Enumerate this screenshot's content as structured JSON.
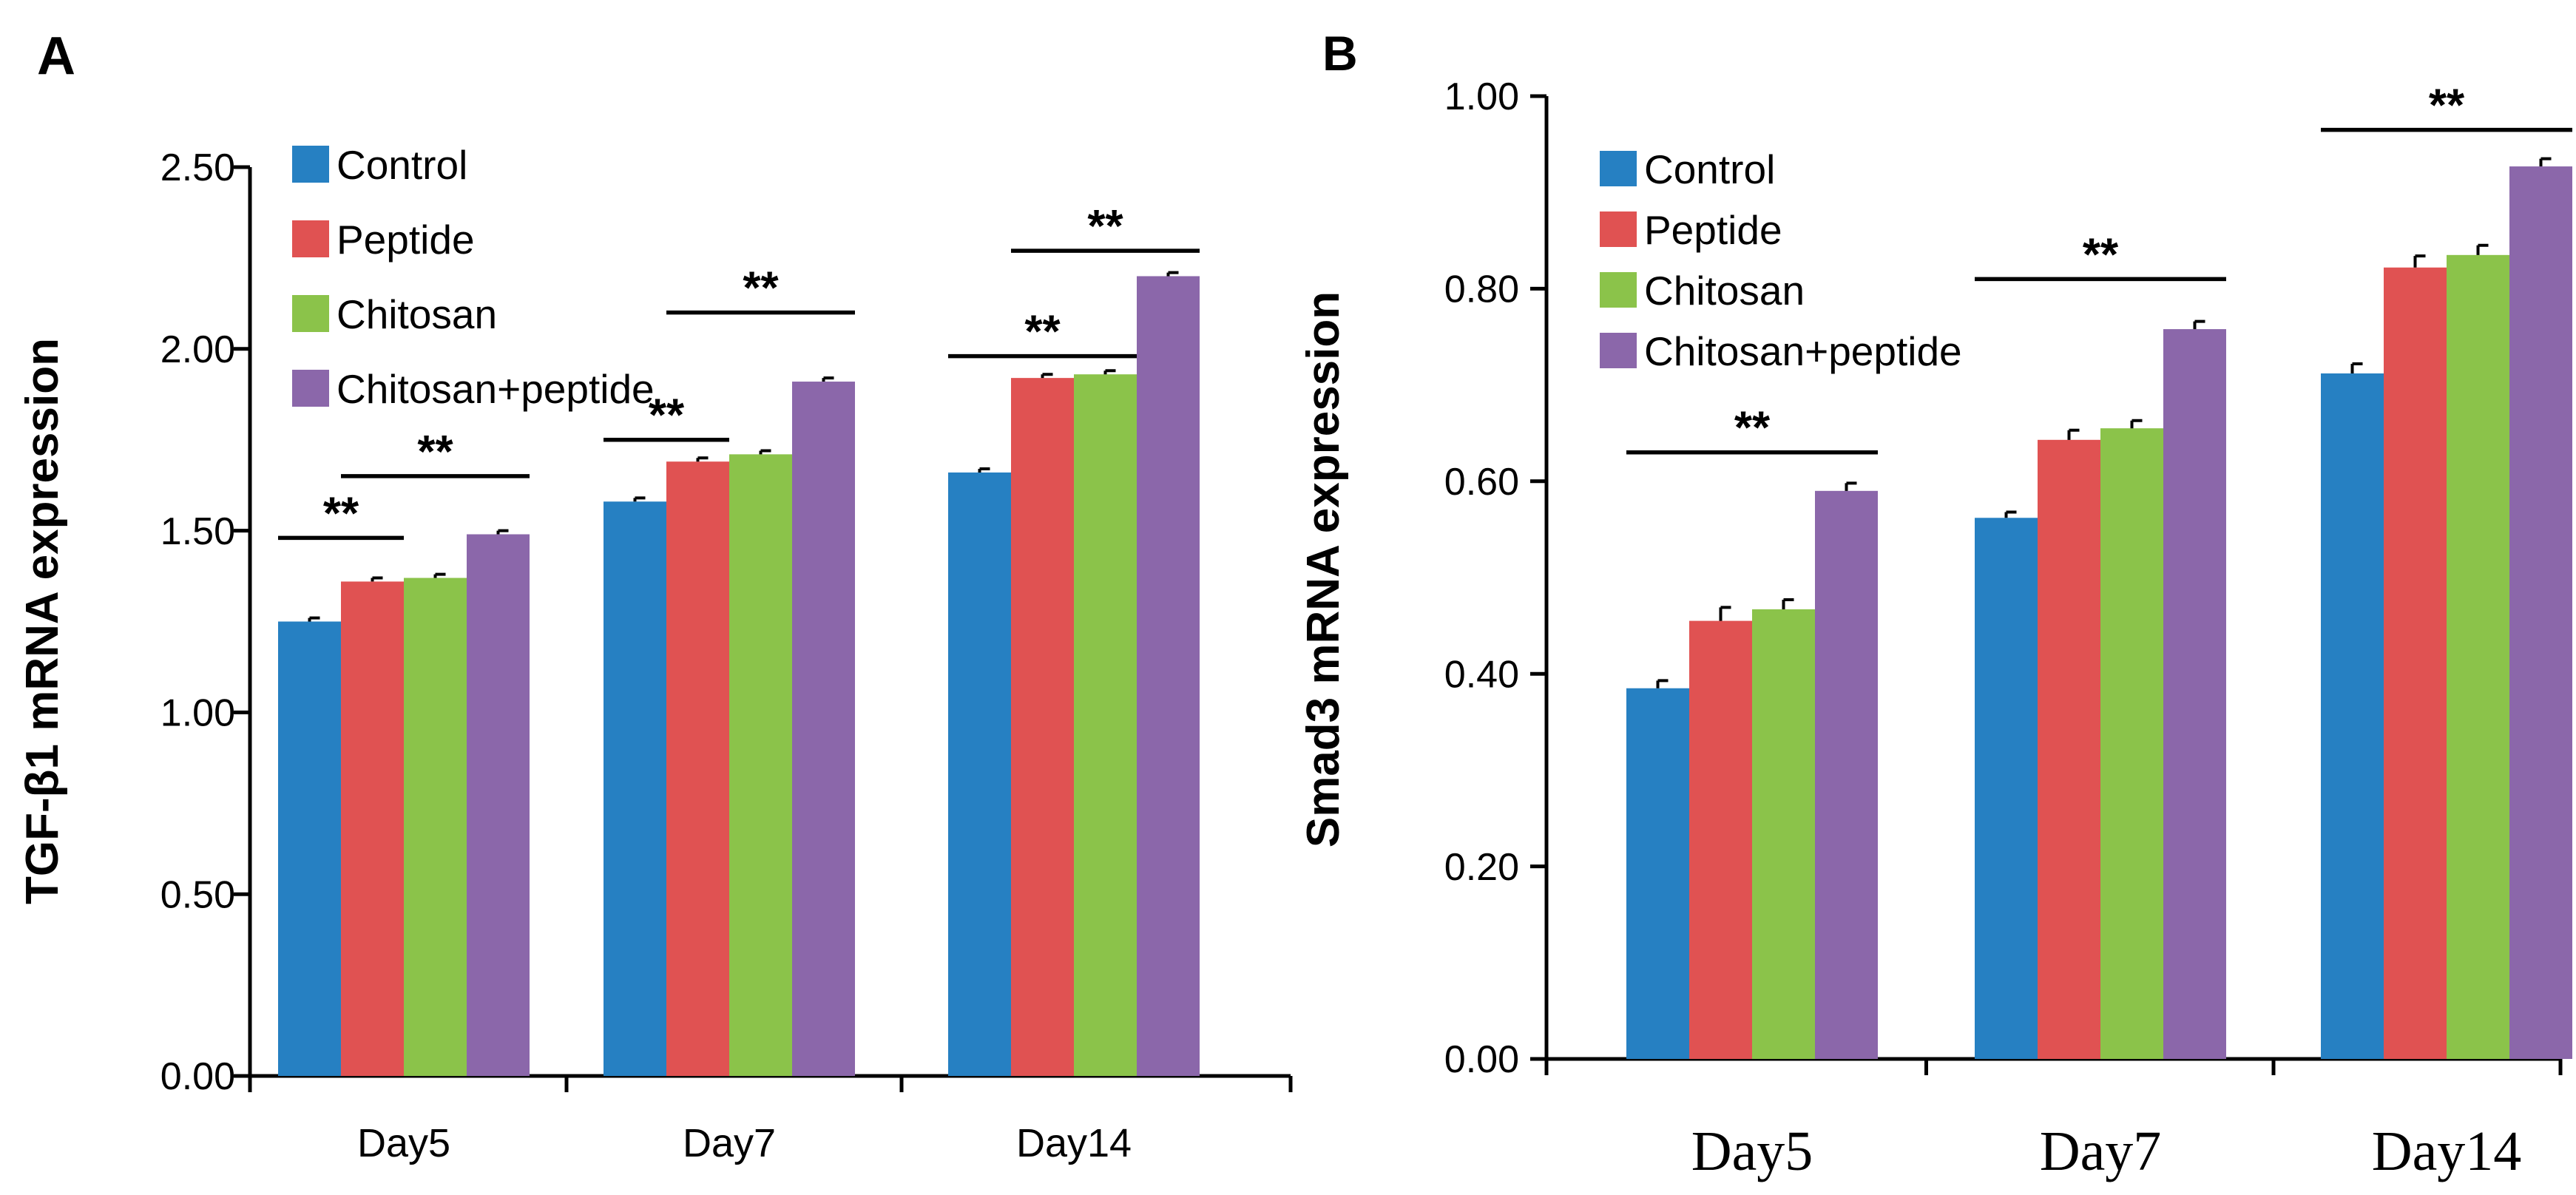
{
  "chart_data": [
    {
      "panel": "A",
      "type": "bar",
      "title": "",
      "xlabel": "",
      "ylabel": "TGF-β1 mRNA expression",
      "ylim": [
        0,
        2.5
      ],
      "yticks": [
        "0.00",
        "0.50",
        "1.00",
        "1.50",
        "2.00",
        "2.50"
      ],
      "categories": [
        "Day5",
        "Day7",
        "Day14"
      ],
      "series": [
        {
          "name": "Control",
          "color": "#2680c2",
          "values": [
            1.25,
            1.58,
            1.66
          ],
          "errors": [
            0.01,
            0.01,
            0.01
          ]
        },
        {
          "name": "Peptide",
          "color": "#e05252",
          "values": [
            1.36,
            1.69,
            1.92
          ],
          "errors": [
            0.01,
            0.01,
            0.01
          ]
        },
        {
          "name": "Chitosan",
          "color": "#8bc34a",
          "values": [
            1.37,
            1.71,
            1.93
          ],
          "errors": [
            0.01,
            0.01,
            0.01
          ]
        },
        {
          "name": "Chitosan+peptide",
          "color": "#8b67aa",
          "values": [
            1.49,
            1.91,
            2.2
          ],
          "errors": [
            0.01,
            0.01,
            0.01
          ]
        }
      ],
      "legend_position": "top-left",
      "annotations": [
        {
          "label": "**",
          "category": "Day5",
          "from": 0,
          "to": 2,
          "y": 1.48
        },
        {
          "label": "**",
          "category": "Day5",
          "from": 1,
          "to": 4,
          "y": 1.65
        },
        {
          "label": "**",
          "category": "Day7",
          "from": 0,
          "to": 2,
          "y": 1.75
        },
        {
          "label": "**",
          "category": "Day7",
          "from": 1,
          "to": 4,
          "y": 2.1
        },
        {
          "label": "**",
          "category": "Day14",
          "from": 0,
          "to": 3,
          "y": 1.98
        },
        {
          "label": "**",
          "category": "Day14",
          "from": 1,
          "to": 4,
          "y": 2.27
        }
      ]
    },
    {
      "panel": "B",
      "type": "bar",
      "title": "",
      "xlabel": "",
      "ylabel": "Smad3 mRNA expression",
      "ylim": [
        0,
        1.0
      ],
      "yticks": [
        "0.00",
        "0.20",
        "0.40",
        "0.60",
        "0.80",
        "1.00"
      ],
      "categories": [
        "Day5",
        "Day7",
        "Day14"
      ],
      "series": [
        {
          "name": "Control",
          "color": "#2680c2",
          "values": [
            0.385,
            0.562,
            0.712
          ],
          "errors": [
            0.008,
            0.006,
            0.01
          ]
        },
        {
          "name": "Peptide",
          "color": "#e05252",
          "values": [
            0.455,
            0.643,
            0.822
          ],
          "errors": [
            0.014,
            0.01,
            0.012
          ]
        },
        {
          "name": "Chitosan",
          "color": "#8bc34a",
          "values": [
            0.467,
            0.655,
            0.835
          ],
          "errors": [
            0.01,
            0.008,
            0.01
          ]
        },
        {
          "name": "Chitosan+peptide",
          "color": "#8b67aa",
          "values": [
            0.59,
            0.758,
            0.927
          ],
          "errors": [
            0.008,
            0.008,
            0.008
          ]
        }
      ],
      "legend_position": "top-left",
      "annotations": [
        {
          "label": "**",
          "category": "Day5",
          "from": 0,
          "to": 4,
          "y": 0.63
        },
        {
          "label": "**",
          "category": "Day7",
          "from": 0,
          "to": 4,
          "y": 0.81
        },
        {
          "label": "**",
          "category": "Day14",
          "from": 0,
          "to": 4,
          "y": 0.965
        }
      ]
    }
  ]
}
